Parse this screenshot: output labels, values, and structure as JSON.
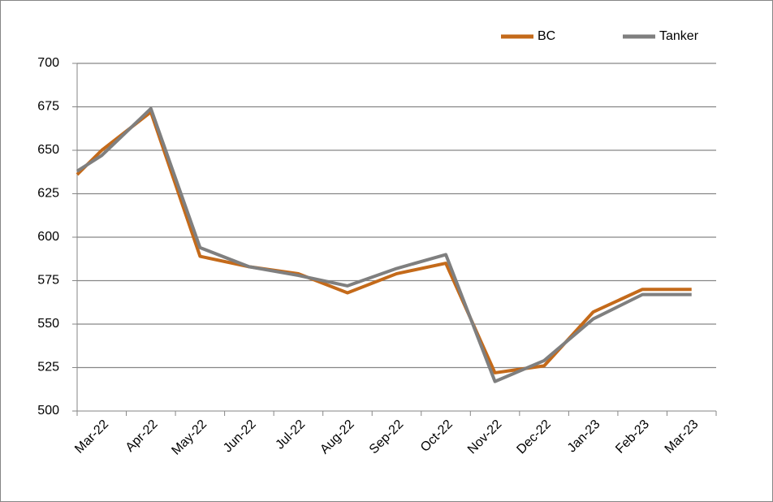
{
  "chart_data": {
    "type": "line",
    "categories": [
      null,
      "Mar-22",
      "Apr-22",
      "May-22",
      "Jun-22",
      "Jul-22",
      "Aug-22",
      "Sep-22",
      "Oct-22",
      "Nov-22",
      "Dec-22",
      "Jan-23",
      "Feb-23",
      "Mar-23"
    ],
    "series": [
      {
        "name": "BC",
        "color": "#c46a1a",
        "values": [
          636,
          650,
          672,
          589,
          583,
          579,
          568,
          579,
          585,
          522,
          526,
          557,
          570,
          570
        ]
      },
      {
        "name": "Tanker",
        "color": "#7f7f7f",
        "values": [
          638,
          647,
          674,
          594,
          583,
          578,
          572,
          582,
          590,
          517,
          529,
          553,
          567,
          567
        ]
      }
    ],
    "ylim": [
      500,
      700
    ],
    "yticks": [
      500,
      525,
      550,
      575,
      600,
      625,
      650,
      675,
      700
    ],
    "grid": true,
    "legend": "top-right"
  }
}
